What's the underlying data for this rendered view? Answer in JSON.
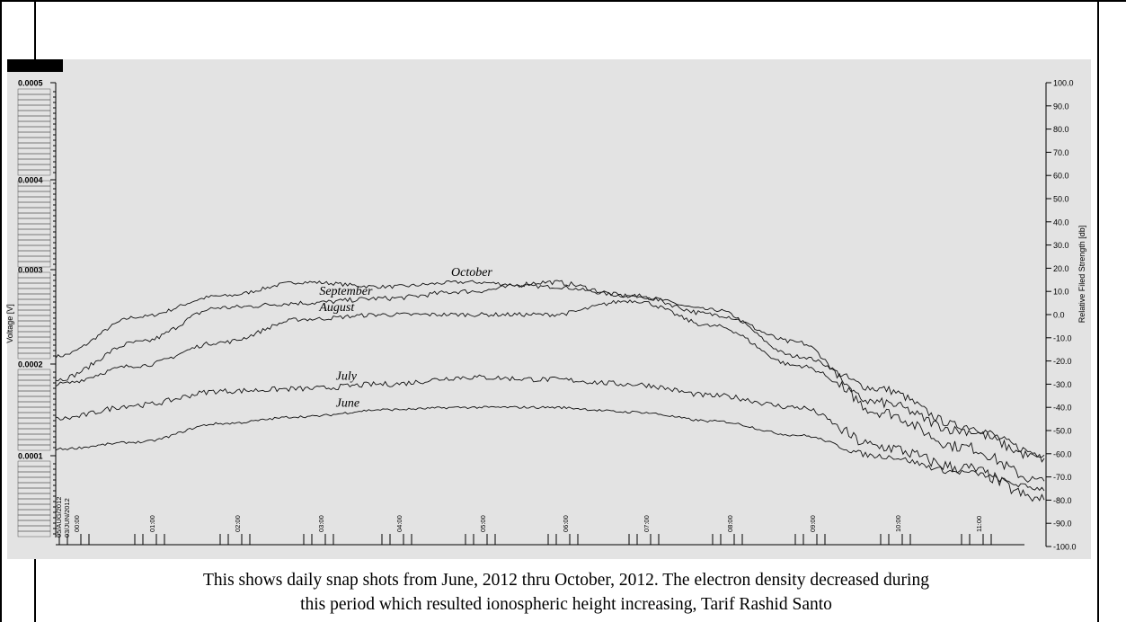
{
  "caption": {
    "line1": "This shows daily snap shots from June, 2012 thru October, 2012.  The electron density decreased during",
    "line2": "this period which resulted ionospheric height increasing, Tarif Rashid Santo"
  },
  "colors": {
    "background": "#ffffff",
    "plot_bg": "#e3e3e3",
    "trace": "#111111",
    "frame": "#000000"
  },
  "chart_data": {
    "type": "line",
    "title": "",
    "ylabel_left": "Voltage [V]",
    "ylabel_right": "Relative Filed Strength [db]",
    "ylim_right": [
      -100,
      100
    ],
    "right_ticks": [
      "100.0",
      "90.0",
      "80.0",
      "70.0",
      "60.0",
      "50.0",
      "40.0",
      "30.0",
      "20.0",
      "10.0",
      "0.0",
      "-10.0",
      "-20.0",
      "-30.0",
      "-40.0",
      "-50.0",
      "-60.0",
      "-70.0",
      "-80.0",
      "-90.0",
      "-100.0"
    ],
    "left_ticks_major": [
      "0.0005",
      "0.0004",
      "0.0003",
      "0.0002",
      "0.0001"
    ],
    "left_tick_values": [
      0.0005,
      0.0004,
      0.0003,
      0.0002,
      0.0001
    ],
    "date_labels": [
      "05/AUG/2012",
      "03/JUN/2012"
    ],
    "time_labels": [
      "00:00",
      "01:00",
      "02:00",
      "03:00",
      "04:00",
      "05:00",
      "06:00",
      "07:00",
      "08:00",
      "09:00",
      "10:00",
      "11:00"
    ],
    "grid": false,
    "x": [
      0,
      1,
      2,
      3,
      4,
      5,
      6,
      7,
      8,
      9,
      10,
      11,
      12
    ],
    "series": [
      {
        "name": "October",
        "values": [
          -18,
          -1,
          8,
          14,
          12,
          14,
          12,
          8,
          2,
          -18,
          -32,
          -48,
          -60
        ]
      },
      {
        "name": "September",
        "values": [
          -28,
          -12,
          3,
          5,
          7,
          10,
          14,
          8,
          0,
          -12,
          -42,
          -57,
          -72
        ]
      },
      {
        "name": "August",
        "values": [
          -30,
          -22,
          -12,
          -2,
          0,
          0,
          0,
          6,
          -5,
          -22,
          -38,
          -50,
          -62
        ]
      },
      {
        "name": "July",
        "values": [
          -45,
          -39,
          -33,
          -32,
          -30,
          -27,
          -28,
          -30,
          -35,
          -40,
          -57,
          -66,
          -80
        ]
      },
      {
        "name": "June",
        "values": [
          -58,
          -55,
          -47,
          -44,
          -41,
          -40,
          -40,
          -42,
          -46,
          -52,
          -61,
          -68,
          -75
        ]
      }
    ],
    "annotations": [
      {
        "text": "October",
        "series": "October",
        "x": 4.8
      },
      {
        "text": "September",
        "series": "September",
        "x": 3.2
      },
      {
        "text": "August",
        "series": "August",
        "x": 3.2
      },
      {
        "text": "July",
        "series": "July",
        "x": 3.4
      },
      {
        "text": "June",
        "series": "June",
        "x": 3.4
      }
    ]
  }
}
